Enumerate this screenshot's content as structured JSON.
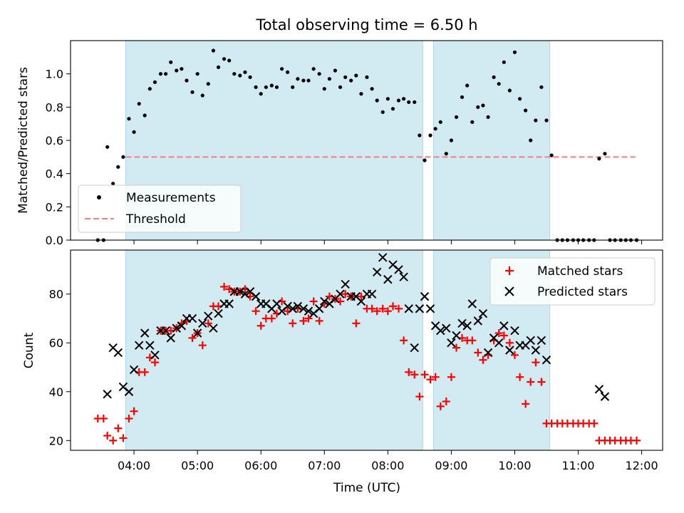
{
  "figure": {
    "title": "Total observing time = 6.50 h",
    "xlabel": "Time (UTC)",
    "xticks": [
      "04:00",
      "05:00",
      "06:00",
      "07:00",
      "08:00",
      "09:00",
      "10:00",
      "11:00",
      "12:00"
    ]
  },
  "chart_data": [
    {
      "type": "scatter",
      "panel": "top",
      "ylabel": "Matched/Predicted stars",
      "xlim_hours": [
        3.0,
        12.33
      ],
      "ylim": [
        0.0,
        1.2
      ],
      "yticks": [
        "0.0",
        "0.2",
        "0.4",
        "0.6",
        "0.8",
        "1.0"
      ],
      "grid": false,
      "legend_position": "lower-left",
      "shaded_intervals": [
        [
          3.87,
          8.55
        ],
        [
          8.72,
          10.55
        ]
      ],
      "shade_color": "#add8e6",
      "threshold": {
        "name": "Threshold",
        "value": 0.5,
        "x": [
          3.87,
          11.9
        ],
        "color": "#f08080"
      },
      "series": [
        {
          "name": "Measurements",
          "color": "#000000",
          "x": [
            3.43,
            3.52,
            3.58,
            3.67,
            3.75,
            3.83,
            3.92,
            4.0,
            4.08,
            4.17,
            4.25,
            4.33,
            4.42,
            4.5,
            4.58,
            4.67,
            4.75,
            4.83,
            4.92,
            5.0,
            5.08,
            5.17,
            5.25,
            5.33,
            5.42,
            5.5,
            5.58,
            5.67,
            5.75,
            5.83,
            5.92,
            6.0,
            6.08,
            6.17,
            6.25,
            6.33,
            6.42,
            6.5,
            6.58,
            6.67,
            6.75,
            6.83,
            6.92,
            7.0,
            7.08,
            7.17,
            7.25,
            7.33,
            7.42,
            7.5,
            7.58,
            7.67,
            7.75,
            7.83,
            7.92,
            8.0,
            8.08,
            8.17,
            8.25,
            8.33,
            8.42,
            8.5,
            8.58,
            8.67,
            8.75,
            8.83,
            8.92,
            9.0,
            9.08,
            9.17,
            9.25,
            9.33,
            9.42,
            9.5,
            9.58,
            9.67,
            9.75,
            9.83,
            9.92,
            10.0,
            10.08,
            10.17,
            10.25,
            10.33,
            10.42,
            10.5,
            10.58,
            10.67,
            10.75,
            10.83,
            10.92,
            11.0,
            11.08,
            11.17,
            11.25,
            11.33,
            11.42,
            11.5,
            11.58,
            11.67,
            11.75,
            11.83,
            11.92
          ],
          "y": [
            0.0,
            0.0,
            0.56,
            0.34,
            0.44,
            0.5,
            0.73,
            0.65,
            0.82,
            0.75,
            0.91,
            0.95,
            1.0,
            1.0,
            1.07,
            1.02,
            1.03,
            0.96,
            0.89,
            1.0,
            0.87,
            0.94,
            1.14,
            1.04,
            1.09,
            1.08,
            1.0,
            0.99,
            1.01,
            0.98,
            0.92,
            0.88,
            0.92,
            0.93,
            0.92,
            1.03,
            1.01,
            0.92,
            0.97,
            0.96,
            0.96,
            1.03,
            1.0,
            0.91,
            0.97,
            1.02,
            0.92,
            0.98,
            0.96,
            0.99,
            0.88,
            0.98,
            0.91,
            0.84,
            0.77,
            0.85,
            0.79,
            0.84,
            0.85,
            0.83,
            0.83,
            0.63,
            0.48,
            0.63,
            0.67,
            0.71,
            0.52,
            0.6,
            0.74,
            0.86,
            0.93,
            0.71,
            0.8,
            0.81,
            0.74,
            0.98,
            0.94,
            1.07,
            0.9,
            1.13,
            0.85,
            0.78,
            0.6,
            0.72,
            0.92,
            0.72,
            0.51,
            0.0,
            0.0,
            0.0,
            0.0,
            0.0,
            0.0,
            0.0,
            0.0,
            0.49,
            0.52,
            0.0,
            0.0,
            0.0,
            0.0,
            0.0,
            0.0
          ]
        }
      ]
    },
    {
      "type": "scatter",
      "panel": "bottom",
      "ylabel": "Count",
      "xlim_hours": [
        3.0,
        12.33
      ],
      "ylim": [
        16,
        98
      ],
      "yticks": [
        "20",
        "40",
        "60",
        "80"
      ],
      "grid": false,
      "legend_position": "upper-right",
      "shaded_intervals": [
        [
          3.87,
          8.55
        ],
        [
          8.72,
          10.55
        ]
      ],
      "shade_color": "#add8e6",
      "series": [
        {
          "name": "Matched stars",
          "marker": "plus",
          "color": "#ff0000",
          "x": [
            3.43,
            3.52,
            3.58,
            3.67,
            3.75,
            3.83,
            3.92,
            4.0,
            4.08,
            4.17,
            4.25,
            4.33,
            4.42,
            4.5,
            4.58,
            4.67,
            4.75,
            4.83,
            4.92,
            5.0,
            5.08,
            5.17,
            5.25,
            5.33,
            5.42,
            5.5,
            5.58,
            5.67,
            5.75,
            5.83,
            5.92,
            6.0,
            6.08,
            6.17,
            6.25,
            6.33,
            6.42,
            6.5,
            6.58,
            6.67,
            6.75,
            6.83,
            6.92,
            7.0,
            7.08,
            7.17,
            7.25,
            7.33,
            7.42,
            7.5,
            7.58,
            7.67,
            7.75,
            7.83,
            7.92,
            8.0,
            8.08,
            8.17,
            8.25,
            8.33,
            8.42,
            8.5,
            8.58,
            8.67,
            8.75,
            8.83,
            8.92,
            9.0,
            9.08,
            9.17,
            9.25,
            9.33,
            9.42,
            9.5,
            9.58,
            9.67,
            9.75,
            9.83,
            9.92,
            10.0,
            10.08,
            10.17,
            10.25,
            10.33,
            10.42,
            10.5,
            10.58,
            10.67,
            10.75,
            10.83,
            10.92,
            11.0,
            11.08,
            11.17,
            11.25,
            11.33,
            11.42,
            11.5,
            11.58,
            11.67,
            11.75,
            11.83,
            11.92
          ],
          "y": [
            29,
            29,
            22,
            20,
            25,
            21,
            29,
            32,
            48,
            48,
            54,
            52,
            65,
            65,
            65,
            66,
            68,
            69,
            62,
            64,
            59,
            68,
            75,
            75,
            83,
            82,
            81,
            81,
            82,
            79,
            73,
            67,
            70,
            70,
            72,
            77,
            73,
            68,
            74,
            69,
            70,
            77,
            69,
            76,
            79,
            78,
            77,
            80,
            79,
            68,
            79,
            74,
            74,
            73,
            74,
            73,
            75,
            74,
            61,
            48,
            47,
            38,
            47,
            45,
            46,
            34,
            36,
            46,
            58,
            62,
            61,
            61,
            56,
            53,
            55,
            61,
            64,
            63,
            60,
            55,
            46,
            35,
            44,
            52,
            44,
            27,
            27,
            27,
            27,
            27,
            27,
            27,
            27,
            27,
            27,
            20,
            20,
            20,
            20,
            20,
            20,
            20,
            20
          ]
        },
        {
          "name": "Predicted stars",
          "marker": "x",
          "color": "#000000",
          "x": [
            3.58,
            3.67,
            3.75,
            3.83,
            3.92,
            4.0,
            4.08,
            4.17,
            4.25,
            4.33,
            4.42,
            4.5,
            4.58,
            4.67,
            4.75,
            4.83,
            4.92,
            5.0,
            5.08,
            5.17,
            5.25,
            5.33,
            5.42,
            5.5,
            5.58,
            5.67,
            5.75,
            5.83,
            5.92,
            6.0,
            6.08,
            6.17,
            6.25,
            6.33,
            6.42,
            6.5,
            6.58,
            6.67,
            6.75,
            6.83,
            6.92,
            7.0,
            7.08,
            7.17,
            7.25,
            7.33,
            7.42,
            7.5,
            7.58,
            7.67,
            7.75,
            7.83,
            7.92,
            8.0,
            8.08,
            8.17,
            8.25,
            8.33,
            8.42,
            8.5,
            8.58,
            8.67,
            8.75,
            8.83,
            8.92,
            9.0,
            9.08,
            9.17,
            9.25,
            9.33,
            9.42,
            9.5,
            9.58,
            9.67,
            9.75,
            9.83,
            9.92,
            10.0,
            10.08,
            10.17,
            10.25,
            10.33,
            10.42,
            10.5,
            11.33,
            11.42
          ],
          "y": [
            39,
            58,
            56,
            42,
            40,
            49,
            59,
            64,
            59,
            55,
            65,
            65,
            62,
            66,
            67,
            70,
            70,
            64,
            68,
            71,
            66,
            72,
            76,
            76,
            81,
            81,
            80,
            81,
            79,
            76,
            76,
            74,
            76,
            73,
            75,
            74,
            75,
            74,
            73,
            72,
            74,
            77,
            76,
            78,
            80,
            84,
            79,
            79,
            77,
            80,
            80,
            89,
            95,
            86,
            92,
            90,
            87,
            74,
            58,
            74,
            79,
            74,
            67,
            65,
            66,
            60,
            63,
            68,
            67,
            76,
            69,
            72,
            56,
            62,
            60,
            67,
            57,
            65,
            59,
            59,
            61,
            57,
            61,
            53,
            41,
            38
          ]
        }
      ]
    }
  ]
}
